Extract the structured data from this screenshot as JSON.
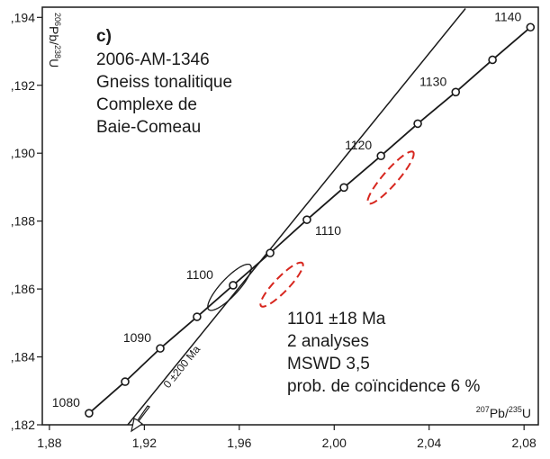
{
  "chart_data": {
    "type": "concordia",
    "panel": "c)",
    "title_lines": [
      "2006-AM-1346",
      "Gneiss tonalitique",
      "Complexe de",
      "Baie-Comeau"
    ],
    "result_lines": [
      "1101 ±18 Ma",
      "2 analyses",
      "MSWD 3,5",
      "prob. de coïncidence 6 %"
    ],
    "x_label": [
      {
        "text": "207",
        "sup": true
      },
      {
        "text": "Pb/",
        "sup": false
      },
      {
        "text": "235",
        "sup": true
      },
      {
        "text": "U",
        "sup": false
      }
    ],
    "y_label": [
      {
        "text": "206",
        "sup": true
      },
      {
        "text": "Pb/",
        "sup": false
      },
      {
        "text": "238",
        "sup": true
      },
      {
        "text": "U",
        "sup": false
      }
    ],
    "xlim": [
      1.877,
      2.086
    ],
    "ylim": [
      0.182,
      0.1943
    ],
    "xticks": [
      {
        "value": 1.88,
        "label": "1,88"
      },
      {
        "value": 1.92,
        "label": "1,92"
      },
      {
        "value": 1.96,
        "label": "1,96"
      },
      {
        "value": 2.0,
        "label": "2,00"
      },
      {
        "value": 2.04,
        "label": "2,04"
      },
      {
        "value": 2.08,
        "label": "2,08"
      }
    ],
    "yticks": [
      {
        "value": 0.182,
        "label": ",182"
      },
      {
        "value": 0.184,
        "label": ",184"
      },
      {
        "value": 0.186,
        "label": ",186"
      },
      {
        "value": 0.188,
        "label": ",188"
      },
      {
        "value": 0.19,
        "label": ",190"
      },
      {
        "value": 0.192,
        "label": ",192"
      },
      {
        "value": 0.194,
        "label": ",194"
      }
    ],
    "concordia": {
      "color": "#1a1a1a",
      "x": [
        1.8967,
        1.9119,
        1.9267,
        1.9422,
        1.9574,
        1.973,
        1.9885,
        2.0041,
        2.0197,
        2.0352,
        2.0512,
        2.0667,
        2.0827
      ],
      "y": [
        0.18234,
        0.18327,
        0.18425,
        0.18518,
        0.18611,
        0.18706,
        0.18804,
        0.18899,
        0.18992,
        0.19087,
        0.1918,
        0.19275,
        0.19371
      ],
      "labels": [
        "1080",
        null,
        "1090",
        null,
        "1100",
        null,
        "1110",
        null,
        "1120",
        null,
        "1130",
        null,
        "1140"
      ]
    },
    "discordia": {
      "color": "#1a1a1a",
      "x": [
        1.913,
        2.0553
      ],
      "y": [
        0.182,
        0.19426
      ],
      "annotation": "0 ±200 Ma"
    },
    "ellipses": [
      {
        "x": 1.9559,
        "y": 0.18605,
        "x_err": 0.00918,
        "y_err": 0.00068,
        "rho": 0.845,
        "color": "#1a1a1a",
        "dashed": false
      },
      {
        "x": 1.9779,
        "y": 0.18613,
        "x_err": 0.00897,
        "y_err": 0.00065,
        "rho": 0.89,
        "color": "#d7261e",
        "dashed": true
      },
      {
        "x": 2.0238,
        "y": 0.18928,
        "x_err": 0.00972,
        "y_err": 0.00077,
        "rho": 0.91,
        "color": "#d7261e",
        "dashed": true
      }
    ]
  }
}
